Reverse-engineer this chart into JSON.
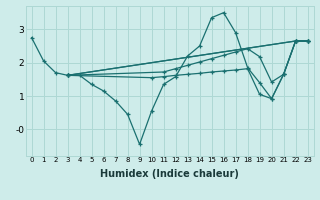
{
  "xlabel": "Humidex (Indice chaleur)",
  "xlim": [
    -0.5,
    23.5
  ],
  "ylim": [
    -0.8,
    3.7
  ],
  "xticks": [
    0,
    1,
    2,
    3,
    4,
    5,
    6,
    7,
    8,
    9,
    10,
    11,
    12,
    13,
    14,
    15,
    16,
    17,
    18,
    19,
    20,
    21,
    22,
    23
  ],
  "yticks": [
    0,
    1,
    2,
    3
  ],
  "ytick_labels": [
    "-0",
    "1",
    "2",
    "3"
  ],
  "bg_color": "#ceecea",
  "grid_color": "#aed8d4",
  "line_color": "#1a7070",
  "series": [
    {
      "x": [
        0,
        1,
        2,
        3,
        4,
        5,
        6,
        7,
        8,
        9,
        10,
        11,
        12,
        13,
        14,
        15,
        16,
        17,
        18,
        19,
        20,
        21,
        22,
        23
      ],
      "y": [
        2.75,
        2.05,
        1.7,
        1.62,
        1.62,
        1.35,
        1.15,
        0.85,
        0.45,
        -0.45,
        0.55,
        1.35,
        1.58,
        2.2,
        2.5,
        3.35,
        3.5,
        2.9,
        1.85,
        1.4,
        0.92,
        1.65,
        2.65,
        2.65
      ]
    },
    {
      "x": [
        3,
        22,
        23
      ],
      "y": [
        1.62,
        2.65,
        2.65
      ]
    },
    {
      "x": [
        3,
        22,
        23
      ],
      "y": [
        1.62,
        2.65,
        2.65
      ]
    },
    {
      "x": [
        3,
        11,
        12,
        13,
        14,
        15,
        16,
        17,
        18,
        19,
        20,
        21,
        22,
        23
      ],
      "y": [
        1.62,
        1.72,
        1.82,
        1.92,
        2.02,
        2.12,
        2.22,
        2.32,
        2.42,
        2.18,
        1.42,
        1.65,
        2.65,
        2.65
      ]
    },
    {
      "x": [
        3,
        10,
        11,
        12,
        13,
        14,
        15,
        16,
        17,
        18,
        19,
        20,
        21,
        22,
        23
      ],
      "y": [
        1.62,
        1.55,
        1.58,
        1.62,
        1.65,
        1.68,
        1.72,
        1.75,
        1.78,
        1.82,
        1.05,
        0.92,
        1.65,
        2.65,
        2.65
      ]
    }
  ]
}
